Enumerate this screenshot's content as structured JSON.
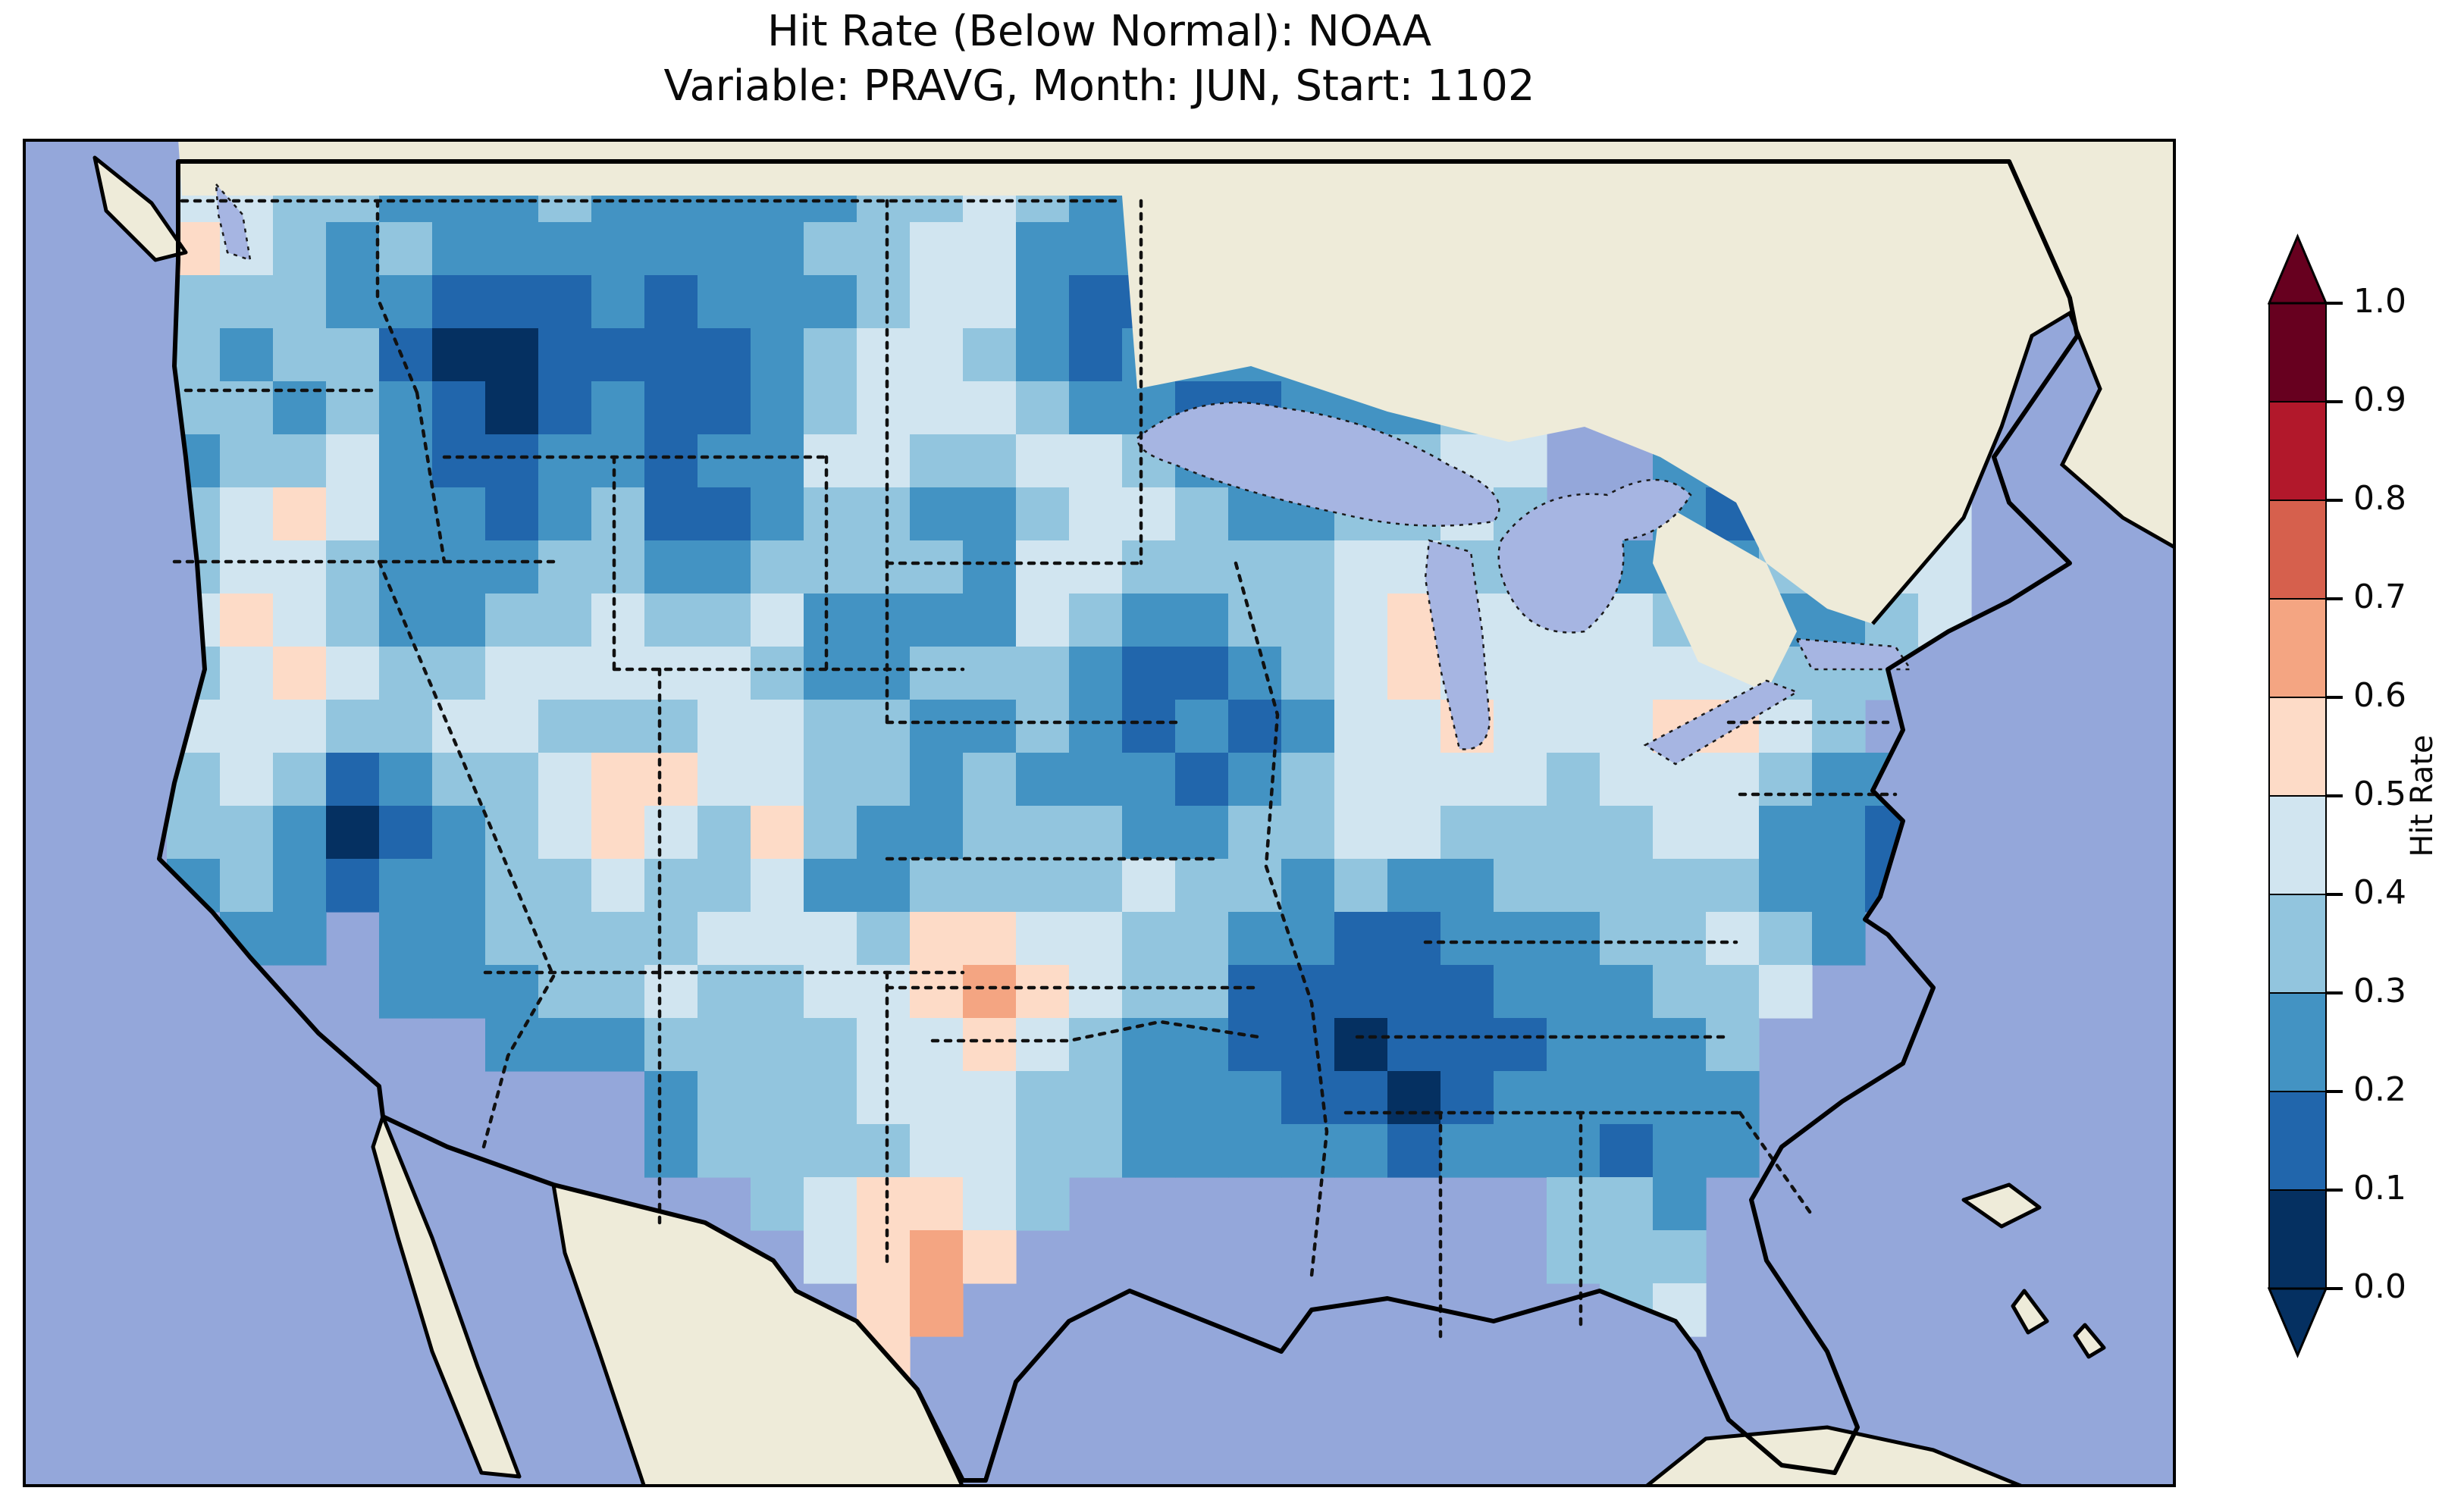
{
  "title": {
    "line1": "Hit Rate (Below Normal): NOAA",
    "line2": "Variable: PRAVG, Month: JUN, Start: 1102"
  },
  "colorbar": {
    "label": "Hit Rate",
    "ticks": [
      "1.0",
      "0.9",
      "0.8",
      "0.7",
      "0.6",
      "0.5",
      "0.4",
      "0.3",
      "0.2",
      "0.1",
      "0.0"
    ],
    "segment_colors_top_to_bottom": [
      "#67001f",
      "#b2182b",
      "#d6604d",
      "#f4a582",
      "#fddbc7",
      "#d1e5f0",
      "#92c5de",
      "#4393c3",
      "#2166ac",
      "#053061"
    ],
    "over_arrow_color": "#67001f",
    "under_arrow_color": "#053061"
  },
  "map_colors": {
    "ocean": "#94a7da",
    "land": "#eeebd9",
    "lakes": "#a6b5e2",
    "coastline": "#000000"
  },
  "chart_data": {
    "type": "heatmap",
    "title": "Hit Rate (Below Normal): NOAA",
    "subtitle": "Variable: PRAVG, Month: JUN, Start: 1102",
    "metric": "Hit Rate",
    "value_range": [
      0.0,
      1.0
    ],
    "bin_size": 0.1,
    "colormap": "RdBu reversed, 10 discrete bins (blue = low hit rate, red = high)",
    "bin_colors": [
      "#053061",
      "#2166ac",
      "#4393c3",
      "#92c5de",
      "#d1e5f0",
      "#fddbc7",
      "#f4a582",
      "#d6604d",
      "#b2182b",
      "#67001f"
    ],
    "grid_legend": "Coarse CONUS grid read from the map. Each char = hit-rate bin index (0 => 0.0-0.1, 1 => 0.1-0.2, ... 9 => 0.9-1.0); '.' = no data (outside USA).",
    "grid_rows": [
      ".44332223222223343222..............",
      ".54323222222233442223..............",
      ".33322111212223442112..............",
      ".3233100111123443212222..........45",
      ".3323210121123444322112223.....3344",
      ".23342112212244334432213344..221234",
      ".34542212311233223443223343..212334",
      ".3443222332233332443333443322223344",
      ".4543223343342222432233454444332234",
      ".345433444443223332112345444444333.",
      ".44433443334433223212124454445543..",
      ".343123345544332322212344443444322.",
      ".3320123454353223332233443333442211",
      ".2321223343342233334332322333332210",
      "..22.2233334443554433221122233432..",
      ".....222334334456543311111222334...",
      ".......222333344543221101112223....",
      "..........233344433222110122222....",
      "..........233334433222221222122....",
      "............345543.........332.....",
      ".............4565..........333.....",
      "..............56............34.....",
      "..............5.............4......",
      "............................33....."
    ],
    "notable_regions": [
      {
        "area": "Idaho / western Montana Rockies",
        "hit_rate": "0.0-0.2 (darkest blues)"
      },
      {
        "area": "Mississippi / Alabama / western Georgia",
        "hit_rate": "0.0-0.2 (large dark patch)"
      },
      {
        "area": "Northeast Minnesota at Canadian border",
        "hit_rate": "0.1-0.2"
      },
      {
        "area": "Upstate New York / Long Island",
        "hit_rate": "0.1-0.3"
      },
      {
        "area": "Eastern Iowa / western Illinois / northern Missouri",
        "hit_rate": "0.1-0.3"
      },
      {
        "area": "North Carolina Outer Banks",
        "hit_rate": "0.0-0.2"
      },
      {
        "area": "Southern California - Arizona border",
        "hit_rate": "0.0-0.2"
      },
      {
        "area": "Northeast Florida",
        "hit_rate": "0.1-0.3"
      },
      {
        "area": "South Texas Gulf coast",
        "hit_rate": "0.5-0.7 (pink/orange pocket)"
      },
      {
        "area": "Scattered pockets: W Washington coast, Nevada, four corners, SE Colorado, N Texas, Indiana, Chesapeake Bay, coastal Maine",
        "hit_rate": "0.5-0.6 (pale pink)"
      },
      {
        "area": "Most of remaining CONUS",
        "hit_rate": "0.2-0.5 (light blues)"
      }
    ]
  }
}
